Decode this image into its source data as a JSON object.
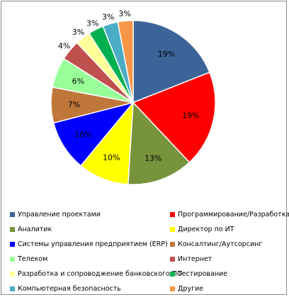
{
  "chart_data": {
    "type": "pie",
    "title": "",
    "slices": [
      {
        "name": "Управление проектами",
        "value": 19,
        "label": "19%",
        "color": "#3D6499"
      },
      {
        "name": "Программирование/Разработка",
        "value": 19,
        "label": "19%",
        "color": "#FF0000"
      },
      {
        "name": "Аналитик",
        "value": 13,
        "label": "13%",
        "color": "#77933C"
      },
      {
        "name": "Директор по ИТ",
        "value": 10,
        "label": "10%",
        "color": "#FFFF00"
      },
      {
        "name": "Системы управления предприятием (ERP)",
        "value": 10,
        "label": "10%",
        "color": "#0000FF"
      },
      {
        "name": "Консалтинг/Аутсорсинг",
        "value": 7,
        "label": "7%",
        "color": "#C0773A"
      },
      {
        "name": "Телеком",
        "value": 6,
        "label": "6%",
        "color": "#99FF99"
      },
      {
        "name": "Интернет",
        "value": 4,
        "label": "4%",
        "color": "#C0504D"
      },
      {
        "name": "Разработка и сопроводжение банковского ПО",
        "value": 3,
        "label": "3%",
        "color": "#FFFF99"
      },
      {
        "name": "Тестирование",
        "value": 3,
        "label": "3%",
        "color": "#00B050"
      },
      {
        "name": "Компьютерная безопасность",
        "value": 3,
        "label": "3%",
        "color": "#4BACC6"
      },
      {
        "name": "Другие",
        "value": 3,
        "label": "3%",
        "color": "#F79646"
      }
    ],
    "legend_position": "bottom"
  }
}
